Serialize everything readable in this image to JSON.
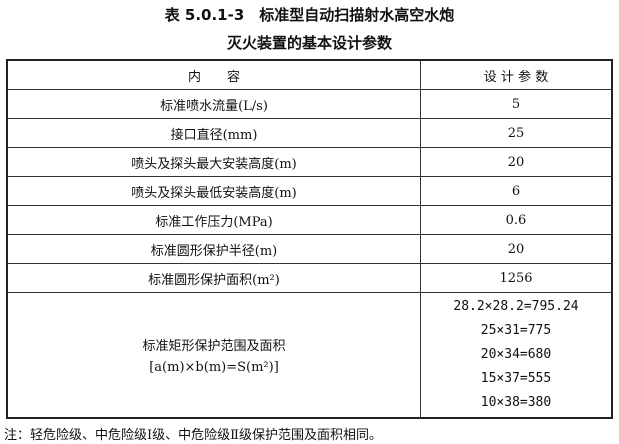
{
  "title": {
    "line1": "表 5.0.1-3　标准型自动扫描射水高空水炮",
    "line2": "灭火装置的基本设计参数"
  },
  "table": {
    "headers": [
      "内　　容",
      "设 计 参 数"
    ],
    "rows": [
      [
        "标准喷水流量(L/s)",
        "5"
      ],
      [
        "接口直径(mm)",
        "25"
      ],
      [
        "喷头及探头最大安装高度(m)",
        "20"
      ],
      [
        "喷头及探头最低安装高度(m)",
        "6"
      ],
      [
        "标准工作压力(MPa)",
        "0.6"
      ],
      [
        "标准圆形保护半径(m)",
        "20"
      ],
      [
        "标准圆形保护面积(m²)",
        "1256"
      ]
    ],
    "last_row": {
      "label_line1": "标准矩形保护范围及面积",
      "label_line2": "[a(m)×b(m)=S(m²)]",
      "values": [
        "28.2×28.2=795.24",
        "25×31=775",
        "20×34=680",
        "15×37=555",
        "10×38=380"
      ]
    }
  },
  "note": "注：轻危险级、中危险级Ⅰ级、中危险级Ⅱ级保护范围及面积相同。"
}
